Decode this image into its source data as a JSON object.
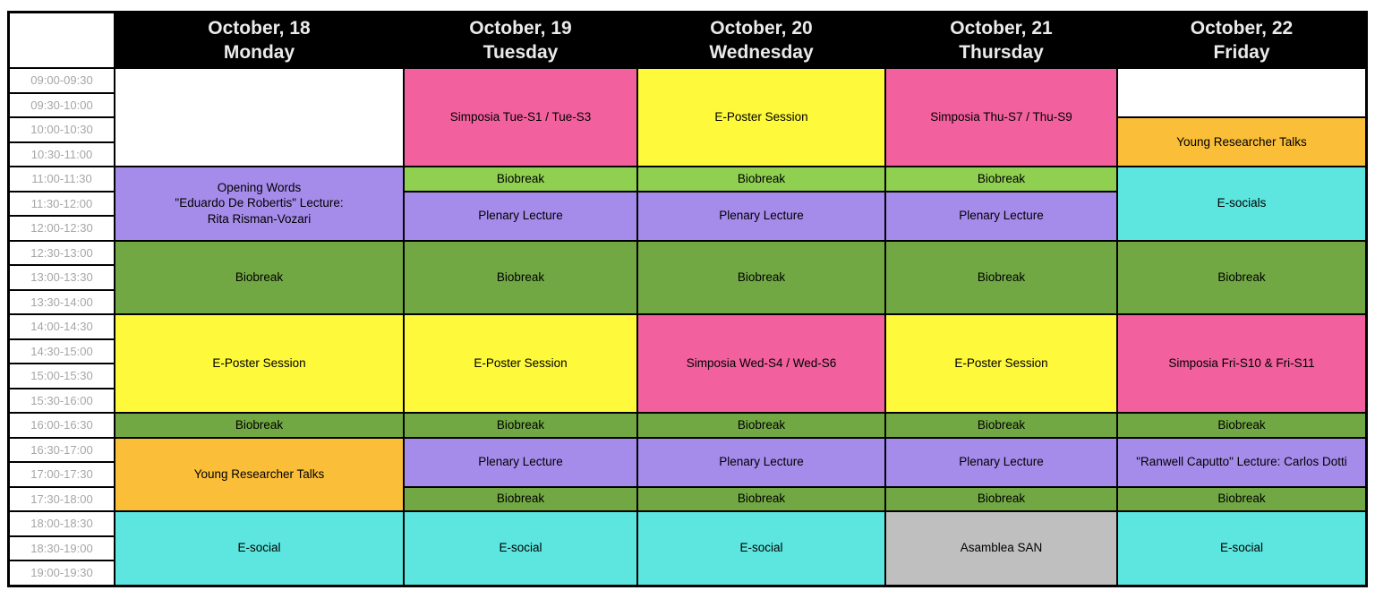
{
  "colors": {
    "pink": "#F2609E",
    "yellow": "#FEFA3B",
    "light_green": "#8FD051",
    "green": "#72A844",
    "purple": "#A58BEA",
    "orange": "#FBBE39",
    "cyan": "#5CE6DF",
    "gray": "#BFBFBF",
    "white": "#FFFFFF",
    "header_bg": "#000000",
    "header_text": "#EAEAEA",
    "time_text": "#A6A6A6"
  },
  "schedule": {
    "days": [
      {
        "date": "October, 18",
        "weekday": "Monday"
      },
      {
        "date": "October, 19",
        "weekday": "Tuesday"
      },
      {
        "date": "October, 20",
        "weekday": "Wednesday"
      },
      {
        "date": "October, 21",
        "weekday": "Thursday"
      },
      {
        "date": "October, 22",
        "weekday": "Friday"
      }
    ],
    "time_slots": [
      "09:00-09:30",
      "09:30-10:00",
      "10:00-10:30",
      "10:30-11:00",
      "11:00-11:30",
      "11:30-12:00",
      "12:00-12:30",
      "12:30-13:00",
      "13:00-13:30",
      "13:30-14:00",
      "14:00-14:30",
      "14:30-15:00",
      "15:00-15:30",
      "15:30-16:00",
      "16:00-16:30",
      "16:30-17:00",
      "17:00-17:30",
      "17:30-18:00",
      "18:00-18:30",
      "18:30-19:00",
      "19:00-19:30"
    ],
    "events": [
      {
        "day": 0,
        "row": 1,
        "span": 4,
        "color": "white",
        "label": ""
      },
      {
        "day": 0,
        "row": 5,
        "span": 3,
        "color": "purple",
        "label": "Opening Words\n\"Eduardo De Robertis\" Lecture:\nRita Risman-Vozari"
      },
      {
        "day": 0,
        "row": 8,
        "span": 3,
        "color": "green",
        "label": "Biobreak"
      },
      {
        "day": 0,
        "row": 11,
        "span": 4,
        "color": "yellow",
        "label": "E-Poster Session"
      },
      {
        "day": 0,
        "row": 15,
        "span": 1,
        "color": "green",
        "label": "Biobreak"
      },
      {
        "day": 0,
        "row": 16,
        "span": 3,
        "color": "orange",
        "label": "Young Researcher Talks"
      },
      {
        "day": 0,
        "row": 19,
        "span": 3,
        "color": "cyan",
        "label": "E-social"
      },
      {
        "day": 1,
        "row": 1,
        "span": 4,
        "color": "pink",
        "label": "Simposia Tue-S1 / Tue-S3"
      },
      {
        "day": 1,
        "row": 5,
        "span": 1,
        "color": "light_green",
        "label": "Biobreak"
      },
      {
        "day": 1,
        "row": 6,
        "span": 2,
        "color": "purple",
        "label": "Plenary Lecture"
      },
      {
        "day": 1,
        "row": 8,
        "span": 3,
        "color": "green",
        "label": "Biobreak"
      },
      {
        "day": 1,
        "row": 11,
        "span": 4,
        "color": "yellow",
        "label": "E-Poster Session"
      },
      {
        "day": 1,
        "row": 15,
        "span": 1,
        "color": "green",
        "label": "Biobreak"
      },
      {
        "day": 1,
        "row": 16,
        "span": 2,
        "color": "purple",
        "label": "Plenary Lecture"
      },
      {
        "day": 1,
        "row": 18,
        "span": 1,
        "color": "green",
        "label": "Biobreak"
      },
      {
        "day": 1,
        "row": 19,
        "span": 3,
        "color": "cyan",
        "label": "E-social"
      },
      {
        "day": 2,
        "row": 1,
        "span": 4,
        "color": "yellow",
        "label": "E-Poster Session"
      },
      {
        "day": 2,
        "row": 5,
        "span": 1,
        "color": "light_green",
        "label": "Biobreak"
      },
      {
        "day": 2,
        "row": 6,
        "span": 2,
        "color": "purple",
        "label": "Plenary Lecture"
      },
      {
        "day": 2,
        "row": 8,
        "span": 3,
        "color": "green",
        "label": "Biobreak"
      },
      {
        "day": 2,
        "row": 11,
        "span": 4,
        "color": "pink",
        "label": "Simposia Wed-S4 / Wed-S6"
      },
      {
        "day": 2,
        "row": 15,
        "span": 1,
        "color": "green",
        "label": "Biobreak"
      },
      {
        "day": 2,
        "row": 16,
        "span": 2,
        "color": "purple",
        "label": "Plenary Lecture"
      },
      {
        "day": 2,
        "row": 18,
        "span": 1,
        "color": "green",
        "label": "Biobreak"
      },
      {
        "day": 2,
        "row": 19,
        "span": 3,
        "color": "cyan",
        "label": "E-social"
      },
      {
        "day": 3,
        "row": 1,
        "span": 4,
        "color": "pink",
        "label": "Simposia Thu-S7 / Thu-S9"
      },
      {
        "day": 3,
        "row": 5,
        "span": 1,
        "color": "light_green",
        "label": "Biobreak"
      },
      {
        "day": 3,
        "row": 6,
        "span": 2,
        "color": "purple",
        "label": "Plenary Lecture"
      },
      {
        "day": 3,
        "row": 8,
        "span": 3,
        "color": "green",
        "label": "Biobreak"
      },
      {
        "day": 3,
        "row": 11,
        "span": 4,
        "color": "yellow",
        "label": "E-Poster Session"
      },
      {
        "day": 3,
        "row": 15,
        "span": 1,
        "color": "green",
        "label": "Biobreak"
      },
      {
        "day": 3,
        "row": 16,
        "span": 2,
        "color": "purple",
        "label": "Plenary Lecture"
      },
      {
        "day": 3,
        "row": 18,
        "span": 1,
        "color": "green",
        "label": "Biobreak"
      },
      {
        "day": 3,
        "row": 19,
        "span": 3,
        "color": "gray",
        "label": "Asamblea SAN"
      },
      {
        "day": 4,
        "row": 1,
        "span": 2,
        "color": "white",
        "label": ""
      },
      {
        "day": 4,
        "row": 3,
        "span": 2,
        "color": "orange",
        "label": "Young Researcher Talks"
      },
      {
        "day": 4,
        "row": 5,
        "span": 3,
        "color": "cyan",
        "label": "E-socials"
      },
      {
        "day": 4,
        "row": 8,
        "span": 3,
        "color": "green",
        "label": "Biobreak"
      },
      {
        "day": 4,
        "row": 11,
        "span": 4,
        "color": "pink",
        "label": "Simposia Fri-S10 & Fri-S11"
      },
      {
        "day": 4,
        "row": 15,
        "span": 1,
        "color": "green",
        "label": "Biobreak"
      },
      {
        "day": 4,
        "row": 16,
        "span": 2,
        "color": "purple",
        "label": "\"Ranwell Caputto\" Lecture: Carlos Dotti"
      },
      {
        "day": 4,
        "row": 18,
        "span": 1,
        "color": "green",
        "label": "Biobreak"
      },
      {
        "day": 4,
        "row": 19,
        "span": 3,
        "color": "cyan",
        "label": "E-social"
      }
    ]
  }
}
